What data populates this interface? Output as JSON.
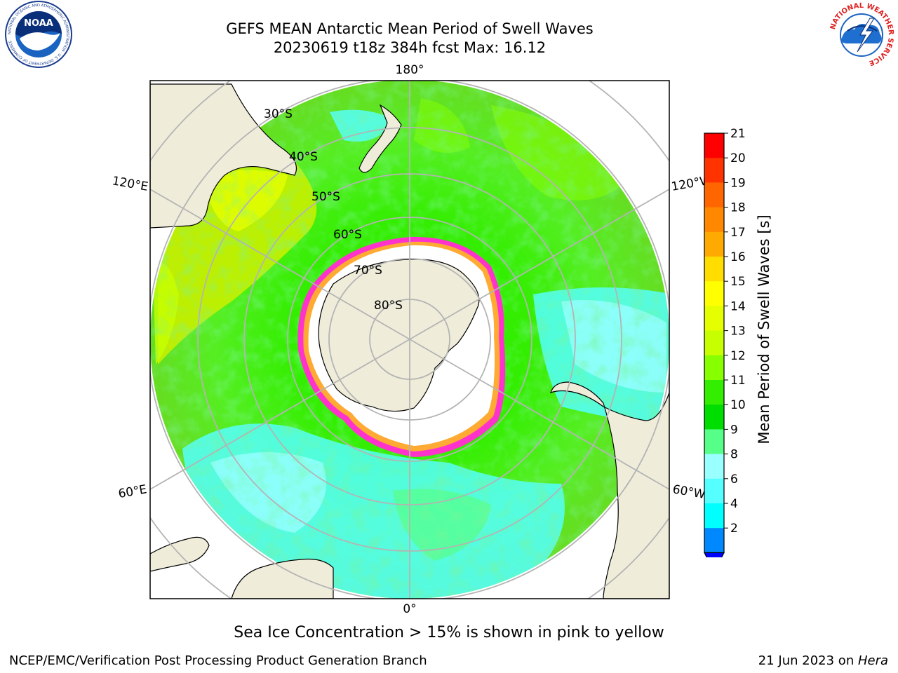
{
  "header": {
    "title_line1": "GEFS MEAN Antarctic Mean Period of Swell Waves",
    "title_line2": "20230619 t18z 384h fcst   Max: 16.12"
  },
  "logos": {
    "left": {
      "icon": "noaa-logo-icon",
      "text": "NOAA",
      "ring_text": "NATIONAL OCEANIC AND ATMOSPHERIC ADMINISTRATION · U.S. DEPARTMENT OF COMMERCE"
    },
    "right": {
      "icon": "national-weather-service-logo-icon",
      "ring_text": "NATIONAL WEATHER SERVICE"
    }
  },
  "map": {
    "projection": "south-polar-stereographic",
    "meridian_labels": {
      "top": "180°",
      "bottom": "0°",
      "left_upper": "120°E",
      "left_lower": "60°E",
      "right_upper": "120°W",
      "right_lower": "60°W"
    },
    "latitude_labels": [
      "30°S",
      "40°S",
      "50°S",
      "60°S",
      "70°S",
      "80°S"
    ],
    "colors": {
      "land": "#efedda",
      "grid": "#b4b4b4",
      "ice": "#ffffff",
      "ice_edge": "#ff33cc",
      "ice_edge_inner": "#ffaa33"
    }
  },
  "colorbar": {
    "label": "Mean Period of Swell Waves [s]",
    "ticks": [
      "21",
      "20",
      "19",
      "18",
      "17",
      "16",
      "15",
      "14",
      "13",
      "12",
      "11",
      "10",
      "9",
      "8",
      "6",
      "4",
      "2"
    ],
    "colors_top_to_bottom": [
      "#ff0000",
      "#ff3300",
      "#ff6600",
      "#ff8800",
      "#ffaa00",
      "#ffdd00",
      "#ffff00",
      "#e6ff00",
      "#c8ff00",
      "#88ff00",
      "#33ee00",
      "#00dd00",
      "#55ff88",
      "#99ffff",
      "#55ffff",
      "#00ffff",
      "#0088ff"
    ],
    "under_color": "#0000ff"
  },
  "footer": {
    "note": "Sea Ice Concentration > 15% is shown in pink to yellow",
    "credit_left": "NCEP/EMC/Verification Post Processing Product Generation Branch",
    "credit_date": "21 Jun 2023 on ",
    "credit_system": "Hera"
  }
}
